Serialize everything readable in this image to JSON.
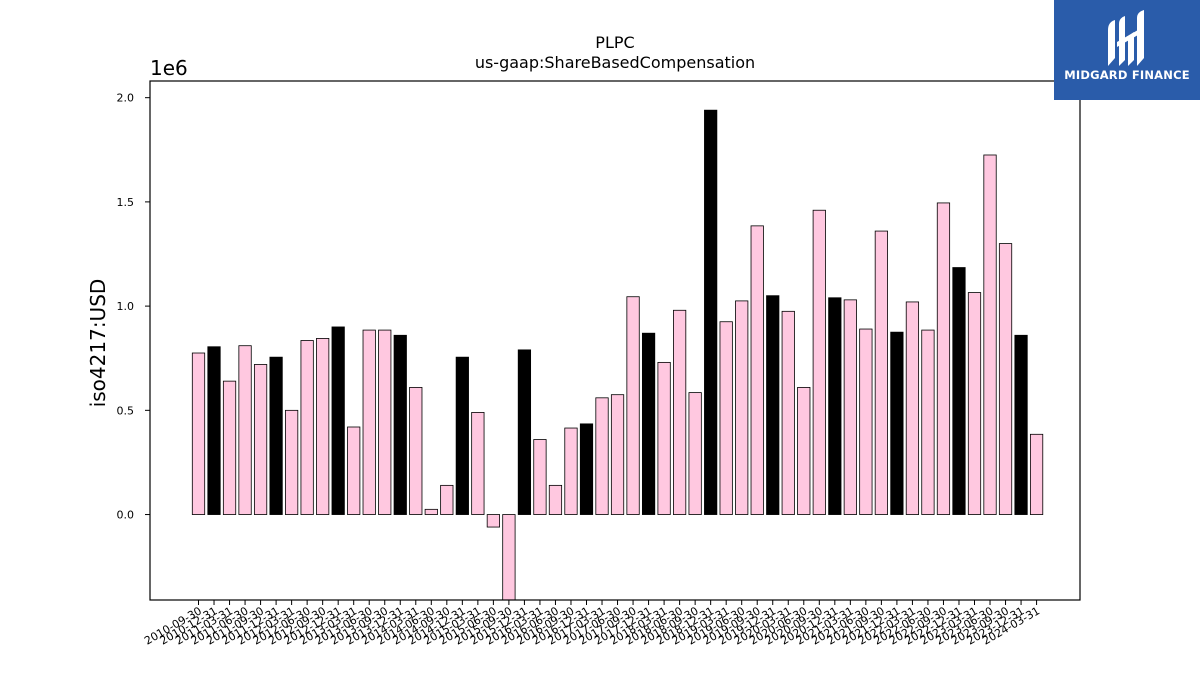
{
  "brand": {
    "name": "MIDGARD FINANCE",
    "bg_color": "#2a5caa",
    "icon": "midgard-logo-icon"
  },
  "chart_data": {
    "type": "bar",
    "title": "PLPC",
    "subtitle": "us-gaap:ShareBasedCompensation",
    "ylabel": "iso4217:USD",
    "xlabel": "",
    "y_multiplier": "1e6",
    "ylim": [
      -0.41,
      2.08
    ],
    "yticks": [
      0.0,
      0.5,
      1.0,
      1.5,
      2.0
    ],
    "ytick_labels": [
      "0.0",
      "0.5",
      "1.0",
      "1.5",
      "2.0"
    ],
    "grid": false,
    "legend": "none",
    "colors": {
      "pink": "#ffc8e0",
      "black": "#000000",
      "edge": "#000000"
    },
    "categories": [
      "2010-09-30",
      "2010-12-31",
      "2011-03-31",
      "2011-06-30",
      "2011-09-30",
      "2011-12-31",
      "2012-03-31",
      "2012-06-30",
      "2012-09-30",
      "2012-12-31",
      "2013-03-31",
      "2013-06-30",
      "2013-09-30",
      "2013-12-31",
      "2014-03-31",
      "2014-06-30",
      "2014-09-30",
      "2014-12-31",
      "2015-03-31",
      "2015-06-30",
      "2015-09-30",
      "2015-12-31",
      "2016-03-31",
      "2016-06-30",
      "2016-09-30",
      "2016-12-31",
      "2017-03-31",
      "2017-06-30",
      "2017-09-30",
      "2017-12-31",
      "2018-03-31",
      "2018-06-30",
      "2018-09-30",
      "2018-12-31",
      "2019-03-31",
      "2019-06-30",
      "2019-09-30",
      "2019-12-31",
      "2020-03-31",
      "2020-06-30",
      "2020-09-30",
      "2020-12-31",
      "2021-03-31",
      "2021-06-30",
      "2021-09-30",
      "2021-12-31",
      "2022-03-31",
      "2022-06-30",
      "2022-09-30",
      "2022-12-31",
      "2023-03-31",
      "2023-06-30",
      "2023-09-30",
      "2023-12-31",
      "2024-03-31"
    ],
    "values": [
      0.775,
      0.805,
      0.64,
      0.81,
      0.72,
      0.755,
      0.5,
      0.835,
      0.845,
      0.9,
      0.42,
      0.885,
      0.885,
      0.86,
      0.61,
      0.025,
      0.14,
      0.755,
      0.49,
      -0.06,
      -0.41,
      0.79,
      0.36,
      0.14,
      0.415,
      0.435,
      0.56,
      0.575,
      1.045,
      0.87,
      0.73,
      0.98,
      0.585,
      1.94,
      0.925,
      1.025,
      1.385,
      1.05,
      0.975,
      0.61,
      1.46,
      1.04,
      1.03,
      0.89,
      1.36,
      0.875,
      1.02,
      0.885,
      1.495,
      1.185,
      1.065,
      1.725,
      1.3,
      0.86,
      0.385
    ],
    "bar_colors": [
      "pink",
      "black",
      "pink",
      "pink",
      "pink",
      "black",
      "pink",
      "pink",
      "pink",
      "black",
      "pink",
      "pink",
      "pink",
      "black",
      "pink",
      "pink",
      "pink",
      "black",
      "pink",
      "pink",
      "pink",
      "black",
      "pink",
      "pink",
      "pink",
      "black",
      "pink",
      "pink",
      "pink",
      "black",
      "pink",
      "pink",
      "pink",
      "black",
      "pink",
      "pink",
      "pink",
      "black",
      "pink",
      "pink",
      "pink",
      "black",
      "pink",
      "pink",
      "pink",
      "black",
      "pink",
      "pink",
      "pink",
      "black",
      "pink",
      "pink",
      "pink",
      "black",
      "pink"
    ]
  }
}
